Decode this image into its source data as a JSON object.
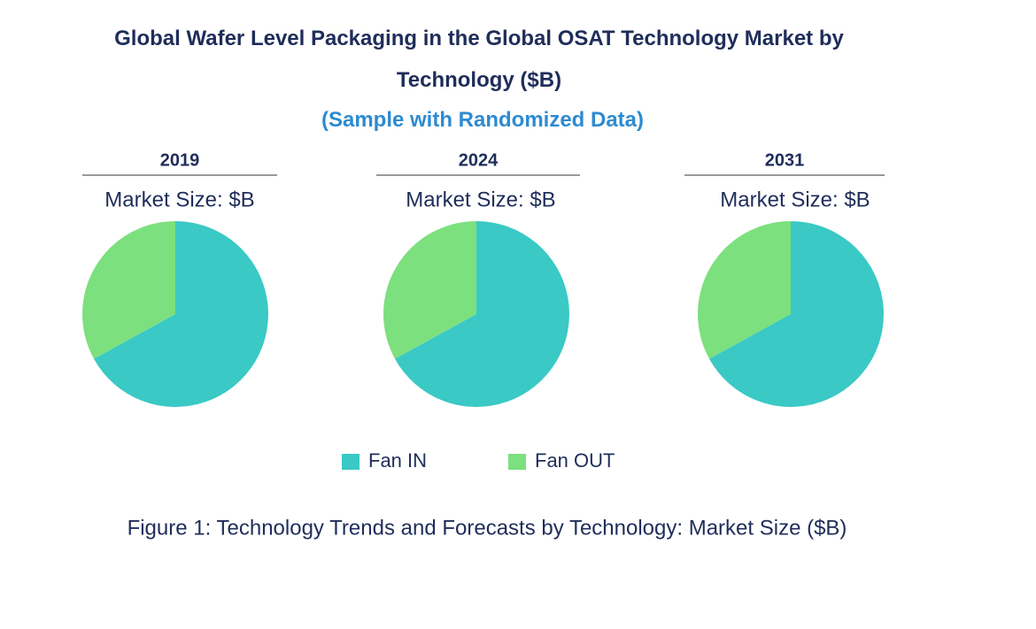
{
  "title": "Global Wafer Level Packaging in the Global OSAT Technology Market by Technology ($B)",
  "subtitle": "(Sample with Randomized Data)",
  "caption": "Figure 1: Technology Trends and Forecasts by Technology: Market Size ($B)",
  "chart_data": [
    {
      "type": "pie",
      "title": "2019",
      "subtitle": "Market Size: $B",
      "categories": [
        "Fan IN",
        "Fan OUT"
      ],
      "values": [
        67,
        33
      ],
      "colors": [
        "#3ac9c5",
        "#7ce07f"
      ]
    },
    {
      "type": "pie",
      "title": "2024",
      "subtitle": "Market Size: $B",
      "categories": [
        "Fan IN",
        "Fan OUT"
      ],
      "values": [
        67,
        33
      ],
      "colors": [
        "#3ac9c5",
        "#7ce07f"
      ]
    },
    {
      "type": "pie",
      "title": "2031",
      "subtitle": "Market Size: $B",
      "categories": [
        "Fan IN",
        "Fan OUT"
      ],
      "values": [
        67,
        33
      ],
      "colors": [
        "#3ac9c5",
        "#7ce07f"
      ]
    }
  ]
}
